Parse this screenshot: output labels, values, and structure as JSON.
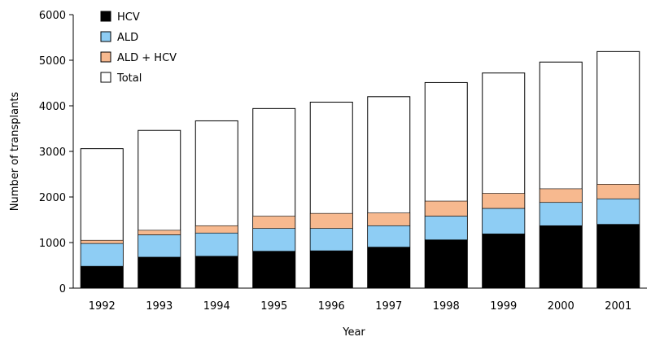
{
  "chart_data": {
    "type": "bar",
    "stacked": true,
    "title": "",
    "xlabel": "Year",
    "ylabel": "Number of transplants",
    "ylim": [
      0,
      6000
    ],
    "yticks": [
      0,
      1000,
      2000,
      3000,
      4000,
      5000,
      6000
    ],
    "grid": false,
    "legend_position": "top-left",
    "categories": [
      "1992",
      "1993",
      "1994",
      "1995",
      "1996",
      "1997",
      "1998",
      "1999",
      "2000",
      "2001"
    ],
    "series": [
      {
        "name": "HCV",
        "color": "#000000",
        "values": [
          480,
          680,
          700,
          810,
          820,
          900,
          1060,
          1190,
          1370,
          1400
        ]
      },
      {
        "name": "ALD",
        "color": "#8ecdf4",
        "values": [
          500,
          490,
          510,
          500,
          490,
          470,
          520,
          560,
          510,
          560
        ]
      },
      {
        "name": "ALD + HCV",
        "color": "#f7b98f",
        "values": [
          70,
          100,
          160,
          270,
          330,
          280,
          330,
          330,
          300,
          320
        ]
      },
      {
        "name": "Total",
        "color": "#ffffff",
        "values": [
          3060,
          3460,
          3670,
          3940,
          4080,
          4200,
          4510,
          4720,
          4960,
          5190
        ]
      }
    ]
  }
}
